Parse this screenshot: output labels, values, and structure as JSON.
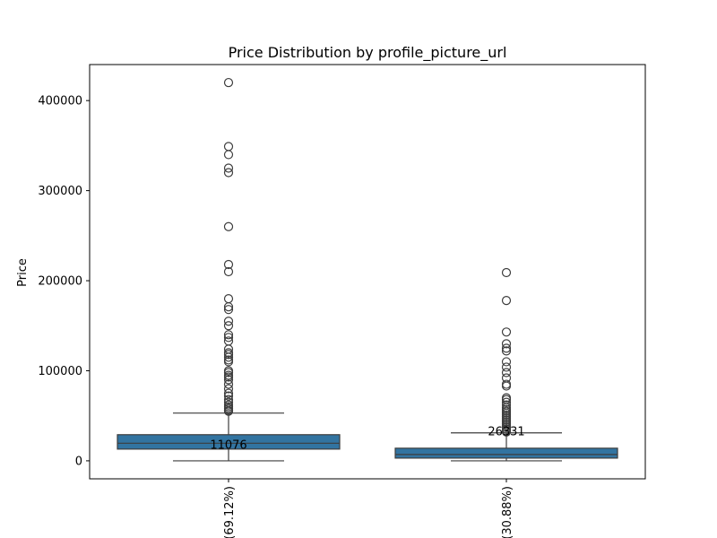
{
  "chart_data": {
    "type": "box",
    "title": "Price Distribution by profile_picture_url",
    "xlabel": "",
    "ylabel": "Price",
    "ylim": [
      -20000,
      440000
    ],
    "yticks": [
      0,
      100000,
      200000,
      300000,
      400000
    ],
    "ytick_labels": [
      "0",
      "100000",
      "200000",
      "300000",
      "400000"
    ],
    "grid": false,
    "legend": "none",
    "box_color": "#3274a1",
    "edge_color": "#3d3d3d",
    "categories": [
      "…(69.12%)",
      "…(30.88%)"
    ],
    "boxes": [
      {
        "category": "…(69.12%)",
        "whisker_low": 0,
        "q1": 13000,
        "median": 19500,
        "q3": 29000,
        "whisker_high": 53000,
        "annotation": "11076",
        "annotation_y": 18000,
        "outliers": [
          420000,
          349000,
          340000,
          325000,
          320000,
          260000,
          218000,
          210000,
          180000,
          171000,
          168000,
          155000,
          150000,
          140000,
          137000,
          133000,
          124000,
          120000,
          118000,
          115000,
          112000,
          110000,
          100000,
          98000,
          95000,
          93000,
          90000,
          85000,
          80000,
          75000,
          72000,
          68000,
          65000,
          62000,
          60000,
          58000,
          56000,
          55000
        ]
      },
      {
        "category": "…(30.88%)",
        "whisker_low": 0,
        "q1": 3000,
        "median": 7000,
        "q3": 14000,
        "whisker_high": 31000,
        "annotation": "26331",
        "annotation_y": 33000,
        "outliers": [
          209000,
          178000,
          143000,
          130000,
          125000,
          122000,
          110000,
          104000,
          98000,
          92000,
          85000,
          83000,
          70000,
          68000,
          65000,
          62000,
          59000,
          57000,
          55000,
          53000,
          51000,
          49000,
          47000,
          45000,
          43000,
          41000,
          39000,
          37000,
          35000,
          33000,
          32000
        ]
      }
    ]
  }
}
